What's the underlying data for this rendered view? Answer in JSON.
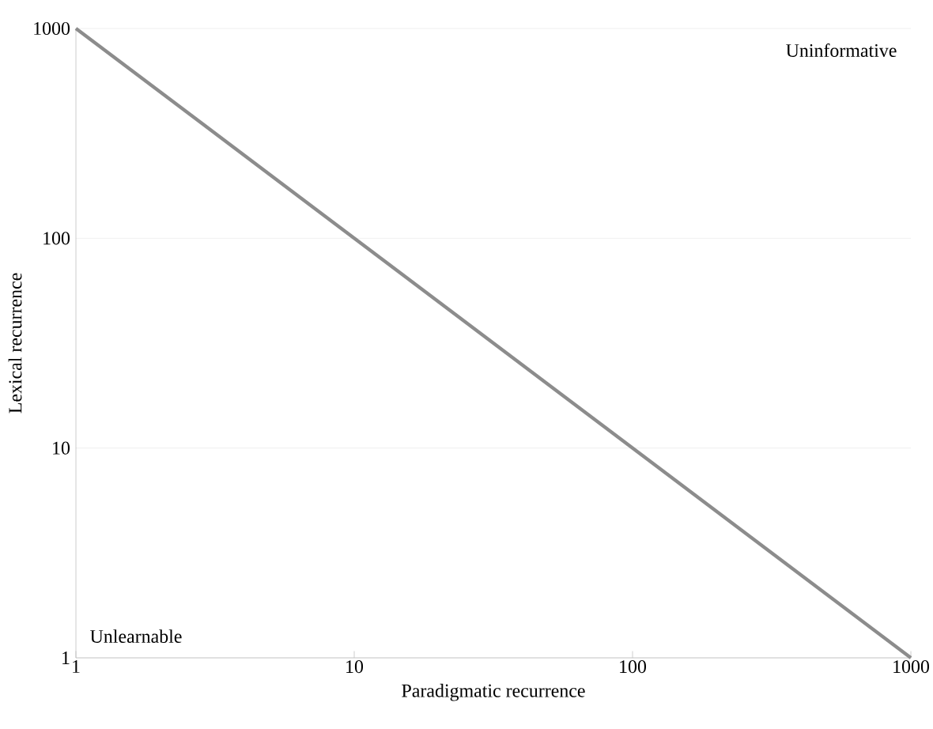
{
  "chart_data": {
    "type": "line",
    "xlabel": "Paradigmatic recurrence",
    "ylabel": "Lexical recurrence",
    "x": [
      1,
      1000
    ],
    "log": "xy",
    "series": [
      {
        "color": "#8c8c8c",
        "values": [
          1000,
          1
        ]
      }
    ],
    "xlim": [
      1,
      1000
    ],
    "ylim": [
      1,
      1000
    ],
    "xticks": [
      1,
      10,
      100,
      1000
    ],
    "yticks": [
      1,
      10,
      100,
      1000
    ],
    "grid": "y",
    "marker": "none",
    "line_style": "solid",
    "annotations": [
      "Uninformative",
      "Unlearnable"
    ]
  }
}
